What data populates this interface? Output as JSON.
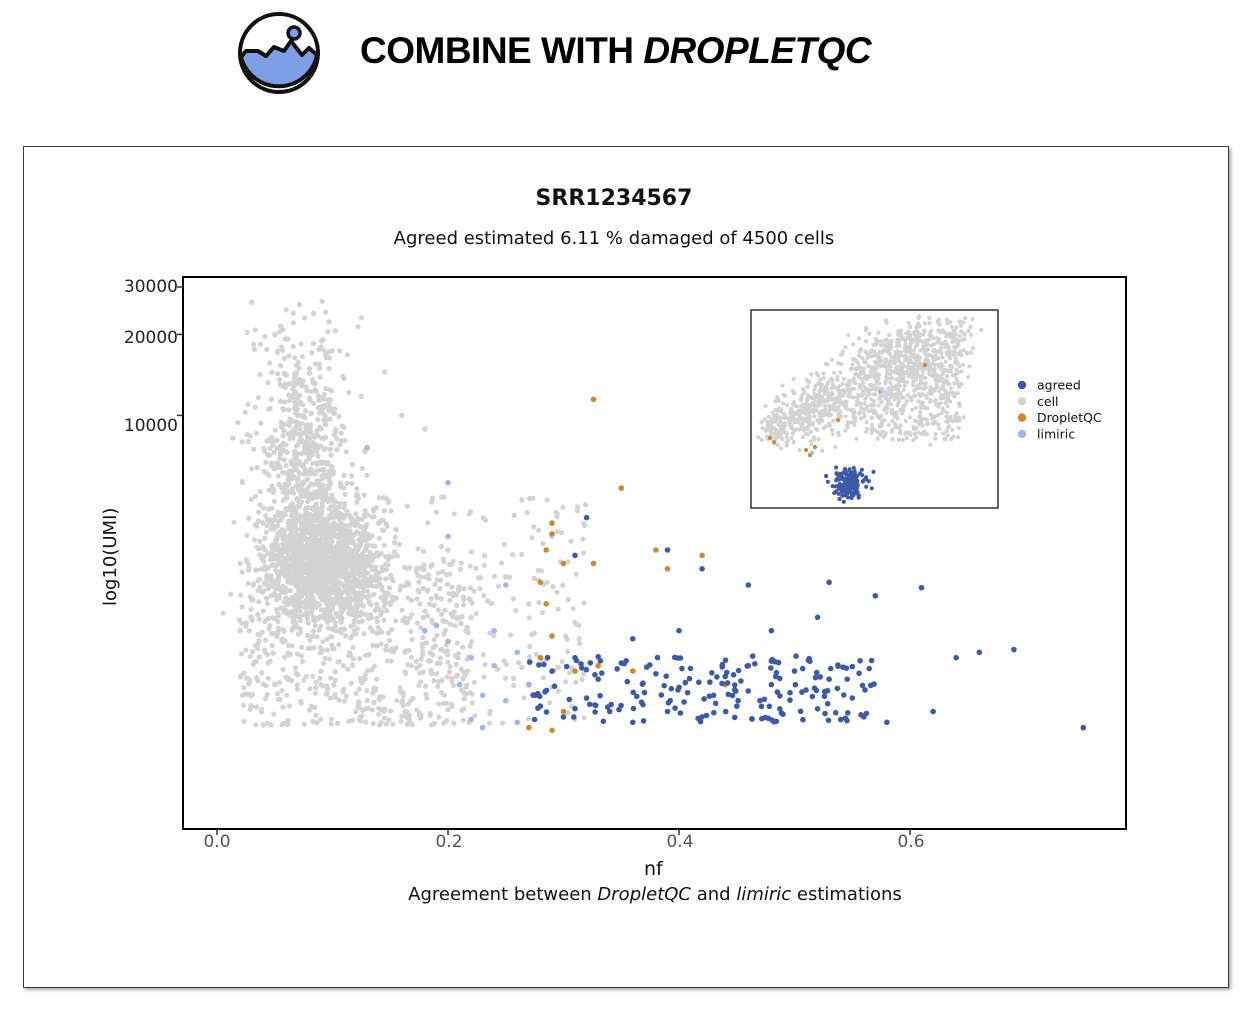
{
  "header": {
    "icon": "image-landscape-icon",
    "title_prefix": "COMBINE WITH ",
    "title_emphasis": "DROPLETQC"
  },
  "chart_data": {
    "type": "scatter",
    "title": "SRR1234567",
    "subtitle": "Agreed estimated 6.11 % damaged of  4500 cells",
    "xlabel": "nf",
    "ylabel": "log10(UMI)",
    "caption": {
      "part1": "Agreement between ",
      "part2": "DropletQC",
      "part3": " and ",
      "part4": "limiric",
      "part5": " estimations"
    },
    "xlim": [
      -0.03,
      0.79
    ],
    "ylim_log10": [
      2.55,
      4.5
    ],
    "y_scale": "log10",
    "x_ticks": [
      "0.0",
      "0.2",
      "0.4",
      "0.6"
    ],
    "y_ticks": [
      "30000",
      "20000",
      "10000"
    ],
    "legend": {
      "placement": "right of inset",
      "entries": [
        "agreed",
        "cell",
        "DropletQC",
        "limiric"
      ]
    },
    "colors": {
      "agreed": "#3b5ba9",
      "cell": "#d3d3d3",
      "DropletQC": "#d4862a",
      "limiric": "#9db8ea"
    },
    "series": [
      {
        "name": "agreed",
        "points": [
          [
            0.27,
            3.0
          ],
          [
            0.28,
            2.92
          ],
          [
            0.29,
            3.05
          ],
          [
            0.3,
            2.88
          ],
          [
            0.31,
            3.1
          ],
          [
            0.32,
            2.95
          ],
          [
            0.33,
            3.02
          ],
          [
            0.34,
            2.9
          ],
          [
            0.35,
            3.08
          ],
          [
            0.36,
            2.86
          ],
          [
            0.37,
            2.97
          ],
          [
            0.38,
            3.04
          ],
          [
            0.39,
            2.9
          ],
          [
            0.4,
            2.99
          ],
          [
            0.41,
            3.06
          ],
          [
            0.42,
            2.88
          ],
          [
            0.43,
            2.96
          ],
          [
            0.44,
            3.03
          ],
          [
            0.45,
            2.92
          ],
          [
            0.46,
            3.07
          ],
          [
            0.47,
            2.94
          ],
          [
            0.48,
            3.0
          ],
          [
            0.49,
            2.89
          ],
          [
            0.5,
            3.05
          ],
          [
            0.51,
            2.98
          ],
          [
            0.52,
            2.91
          ],
          [
            0.53,
            3.02
          ],
          [
            0.54,
            2.87
          ],
          [
            0.55,
            2.95
          ],
          [
            0.56,
            2.88
          ],
          [
            0.58,
            2.86
          ],
          [
            0.62,
            2.9
          ],
          [
            0.64,
            3.1
          ],
          [
            0.66,
            3.12
          ],
          [
            0.69,
            3.13
          ],
          [
            0.75,
            2.84
          ],
          [
            0.32,
            3.62
          ],
          [
            0.42,
            3.43
          ],
          [
            0.46,
            3.37
          ],
          [
            0.53,
            3.38
          ],
          [
            0.61,
            3.36
          ],
          [
            0.57,
            3.33
          ],
          [
            0.31,
            3.48
          ],
          [
            0.39,
            3.5
          ],
          [
            0.48,
            3.2
          ],
          [
            0.52,
            3.25
          ],
          [
            0.4,
            3.2
          ],
          [
            0.36,
            3.17
          ]
        ]
      },
      {
        "name": "cell",
        "points": [
          [
            0.03,
            4.42
          ],
          [
            0.05,
            4.3
          ],
          [
            0.06,
            4.15
          ],
          [
            0.07,
            4.0
          ],
          [
            0.08,
            3.85
          ],
          [
            0.09,
            3.7
          ],
          [
            0.1,
            3.55
          ],
          [
            0.11,
            3.4
          ],
          [
            0.12,
            3.25
          ],
          [
            0.06,
            3.3
          ],
          [
            0.05,
            3.0
          ],
          [
            0.04,
            2.85
          ],
          [
            0.02,
            3.2
          ],
          [
            0.14,
            3.6
          ],
          [
            0.16,
            4.0
          ],
          [
            0.18,
            3.95
          ],
          [
            0.2,
            3.5
          ],
          [
            0.22,
            3.25
          ],
          [
            0.25,
            3.4
          ],
          [
            0.27,
            3.3
          ],
          [
            0.29,
            3.55
          ],
          [
            0.3,
            3.45
          ]
        ]
      },
      {
        "name": "DropletQC",
        "points": [
          [
            0.326,
            4.06
          ],
          [
            0.35,
            3.73
          ],
          [
            0.29,
            3.6
          ],
          [
            0.29,
            3.56
          ],
          [
            0.285,
            3.5
          ],
          [
            0.28,
            3.38
          ],
          [
            0.285,
            3.3
          ],
          [
            0.29,
            3.18
          ],
          [
            0.38,
            3.5
          ],
          [
            0.42,
            3.48
          ],
          [
            0.3,
            3.45
          ],
          [
            0.326,
            3.45
          ],
          [
            0.39,
            3.43
          ],
          [
            0.28,
            3.1
          ],
          [
            0.31,
            3.05
          ],
          [
            0.33,
            3.07
          ],
          [
            0.3,
            2.9
          ],
          [
            0.27,
            2.84
          ],
          [
            0.29,
            2.83
          ],
          [
            0.44,
            3.0
          ],
          [
            0.36,
            3.05
          ]
        ]
      },
      {
        "name": "limiric",
        "points": [
          [
            0.13,
            3.88
          ],
          [
            0.2,
            3.75
          ],
          [
            0.2,
            3.55
          ],
          [
            0.25,
            3.37
          ],
          [
            0.18,
            3.2
          ],
          [
            0.19,
            3.22
          ],
          [
            0.2,
            3.16
          ],
          [
            0.22,
            3.1
          ],
          [
            0.24,
            3.07
          ],
          [
            0.21,
            3.0
          ],
          [
            0.23,
            2.96
          ],
          [
            0.25,
            2.94
          ],
          [
            0.22,
            2.87
          ],
          [
            0.23,
            2.84
          ],
          [
            0.26,
            2.86
          ],
          [
            0.27,
            3.0
          ],
          [
            0.24,
            3.2
          ],
          [
            0.26,
            3.12
          ]
        ]
      }
    ]
  }
}
